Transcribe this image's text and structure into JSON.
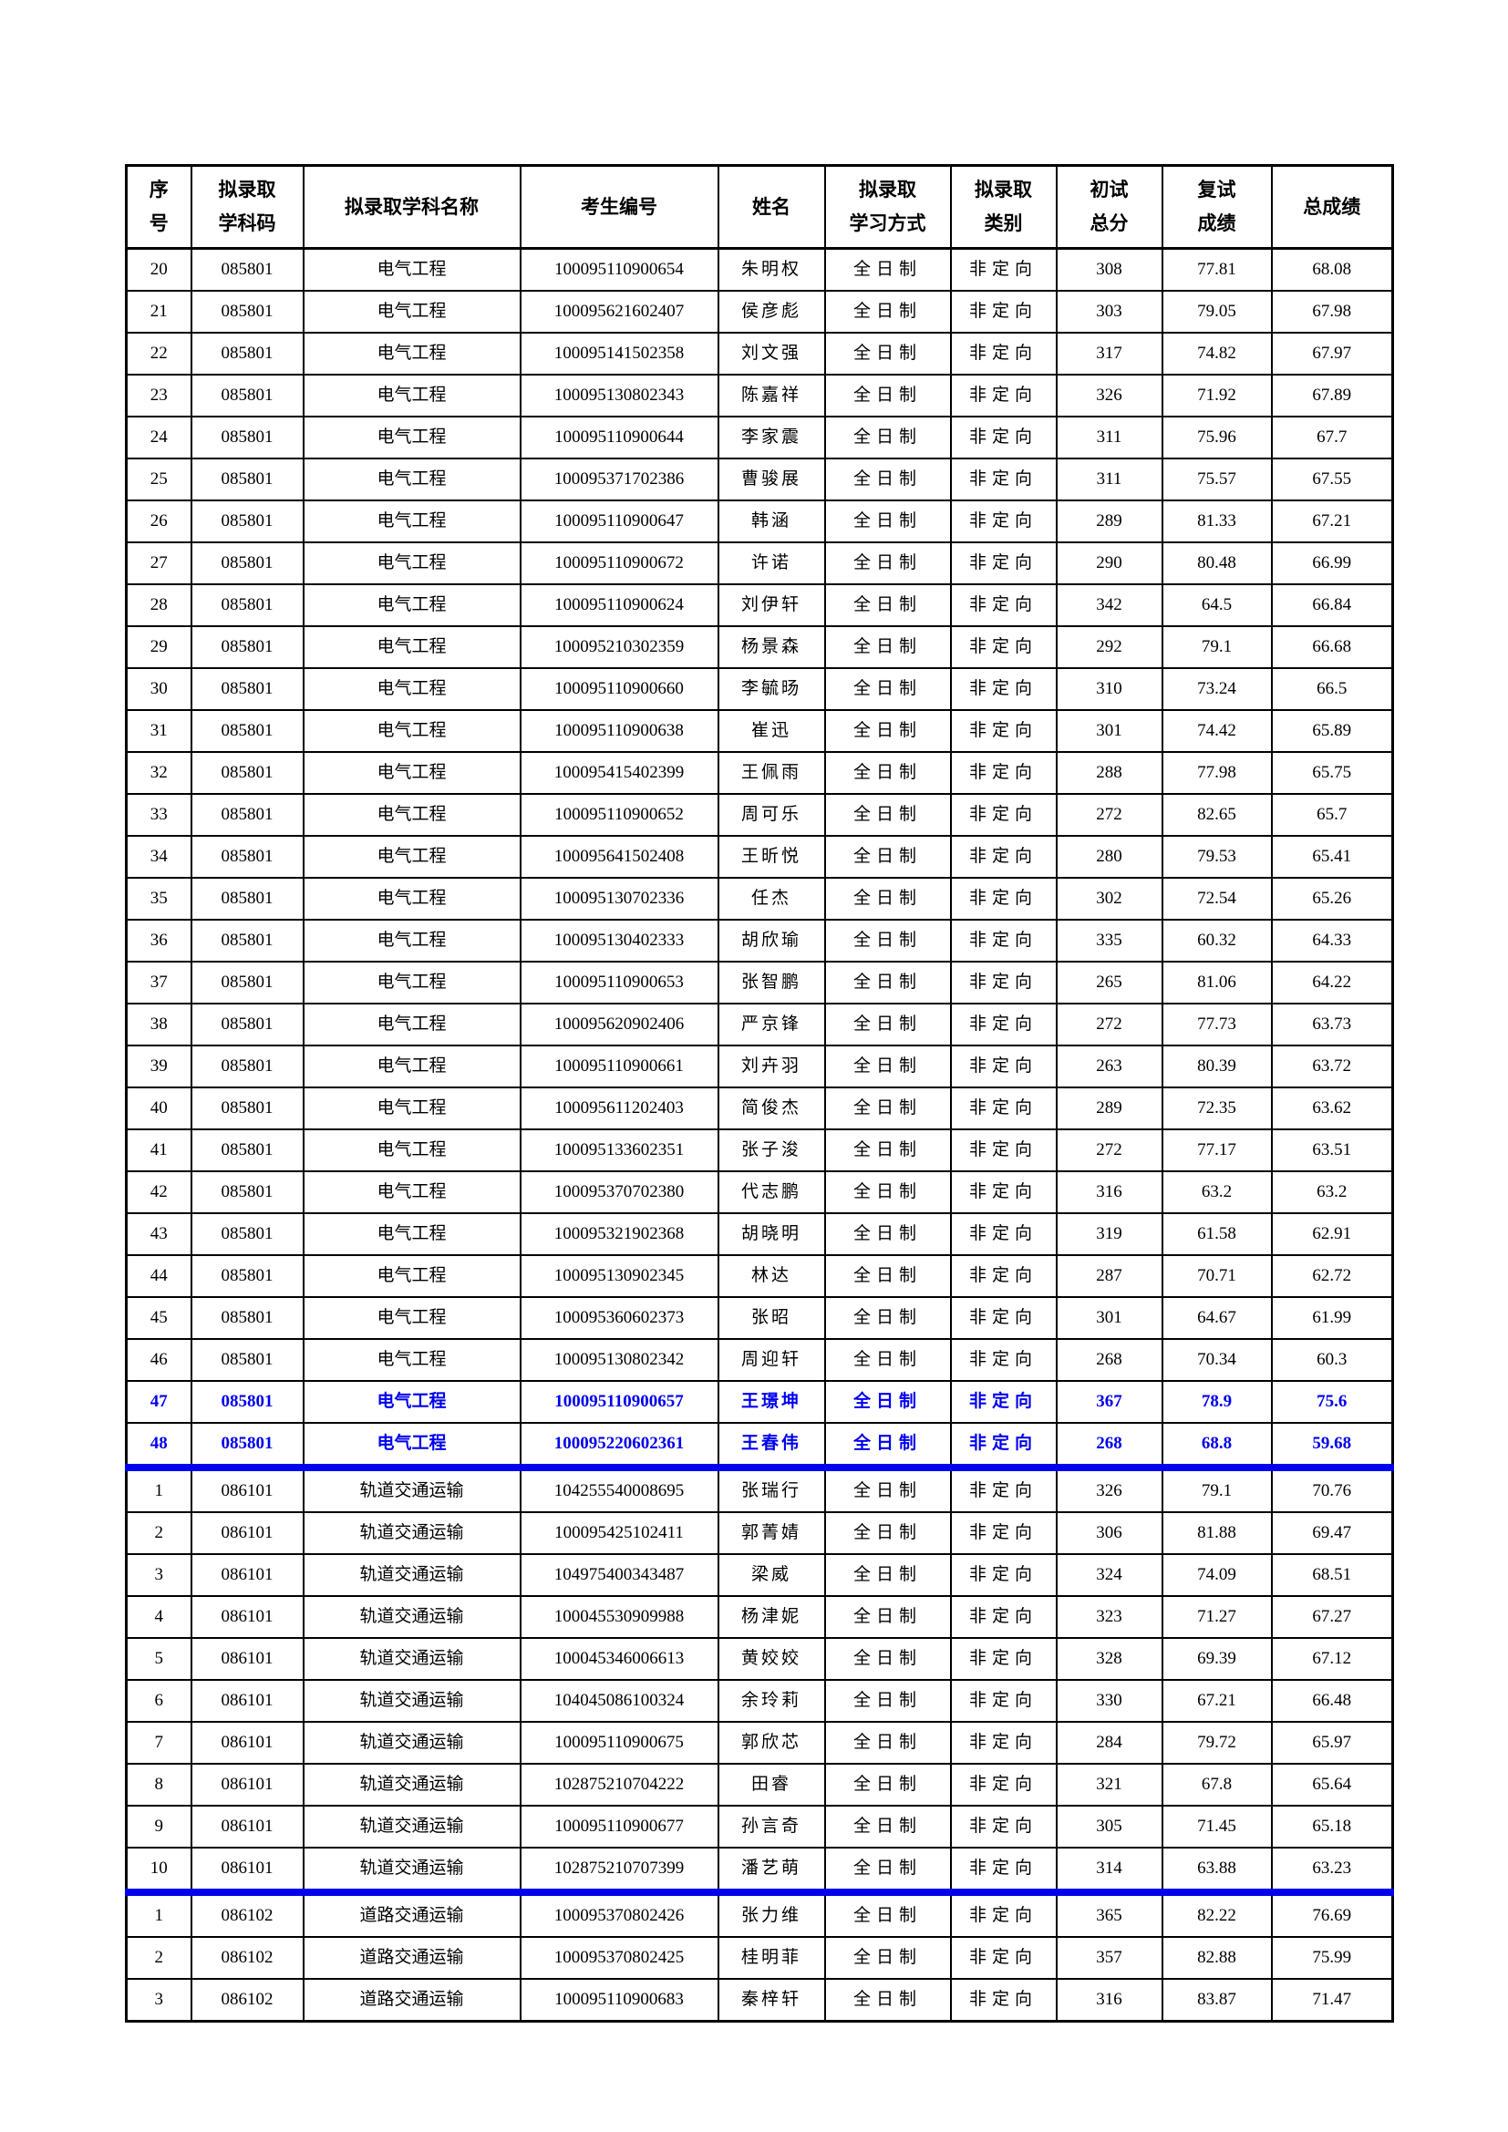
{
  "colors": {
    "text": "#000000",
    "border": "#000000",
    "highlight_text": "#0000EE",
    "section_divider": "#0000EE",
    "page_background": "#ffffff"
  },
  "table": {
    "header": [
      "序\n号",
      "拟录取\n学科码",
      "拟录取学科名称",
      "考生编号",
      "姓名",
      "拟录取\n学习方式",
      "拟录取\n类别",
      "初试\n总分",
      "复试\n成绩",
      "总成绩"
    ],
    "rows": [
      {
        "seq": "20",
        "code": "085801",
        "subject": "电气工程",
        "candidate_no": "100095110900654",
        "name": "朱明权",
        "study_mode": "全日制",
        "category": "非定向",
        "initial_score": "308",
        "retest_score": "77.81",
        "total_score": "68.08",
        "highlight": false,
        "divider_before": false
      },
      {
        "seq": "21",
        "code": "085801",
        "subject": "电气工程",
        "candidate_no": "100095621602407",
        "name": "侯彦彪",
        "study_mode": "全日制",
        "category": "非定向",
        "initial_score": "303",
        "retest_score": "79.05",
        "total_score": "67.98",
        "highlight": false,
        "divider_before": false
      },
      {
        "seq": "22",
        "code": "085801",
        "subject": "电气工程",
        "candidate_no": "100095141502358",
        "name": "刘文强",
        "study_mode": "全日制",
        "category": "非定向",
        "initial_score": "317",
        "retest_score": "74.82",
        "total_score": "67.97",
        "highlight": false,
        "divider_before": false
      },
      {
        "seq": "23",
        "code": "085801",
        "subject": "电气工程",
        "candidate_no": "100095130802343",
        "name": "陈嘉祥",
        "study_mode": "全日制",
        "category": "非定向",
        "initial_score": "326",
        "retest_score": "71.92",
        "total_score": "67.89",
        "highlight": false,
        "divider_before": false
      },
      {
        "seq": "24",
        "code": "085801",
        "subject": "电气工程",
        "candidate_no": "100095110900644",
        "name": "李家震",
        "study_mode": "全日制",
        "category": "非定向",
        "initial_score": "311",
        "retest_score": "75.96",
        "total_score": "67.7",
        "highlight": false,
        "divider_before": false
      },
      {
        "seq": "25",
        "code": "085801",
        "subject": "电气工程",
        "candidate_no": "100095371702386",
        "name": "曹骏展",
        "study_mode": "全日制",
        "category": "非定向",
        "initial_score": "311",
        "retest_score": "75.57",
        "total_score": "67.55",
        "highlight": false,
        "divider_before": false
      },
      {
        "seq": "26",
        "code": "085801",
        "subject": "电气工程",
        "candidate_no": "100095110900647",
        "name": "韩涵",
        "study_mode": "全日制",
        "category": "非定向",
        "initial_score": "289",
        "retest_score": "81.33",
        "total_score": "67.21",
        "highlight": false,
        "divider_before": false
      },
      {
        "seq": "27",
        "code": "085801",
        "subject": "电气工程",
        "candidate_no": "100095110900672",
        "name": "许诺",
        "study_mode": "全日制",
        "category": "非定向",
        "initial_score": "290",
        "retest_score": "80.48",
        "total_score": "66.99",
        "highlight": false,
        "divider_before": false
      },
      {
        "seq": "28",
        "code": "085801",
        "subject": "电气工程",
        "candidate_no": "100095110900624",
        "name": "刘伊轩",
        "study_mode": "全日制",
        "category": "非定向",
        "initial_score": "342",
        "retest_score": "64.5",
        "total_score": "66.84",
        "highlight": false,
        "divider_before": false
      },
      {
        "seq": "29",
        "code": "085801",
        "subject": "电气工程",
        "candidate_no": "100095210302359",
        "name": "杨景森",
        "study_mode": "全日制",
        "category": "非定向",
        "initial_score": "292",
        "retest_score": "79.1",
        "total_score": "66.68",
        "highlight": false,
        "divider_before": false
      },
      {
        "seq": "30",
        "code": "085801",
        "subject": "电气工程",
        "candidate_no": "100095110900660",
        "name": "李毓旸",
        "study_mode": "全日制",
        "category": "非定向",
        "initial_score": "310",
        "retest_score": "73.24",
        "total_score": "66.5",
        "highlight": false,
        "divider_before": false
      },
      {
        "seq": "31",
        "code": "085801",
        "subject": "电气工程",
        "candidate_no": "100095110900638",
        "name": "崔迅",
        "study_mode": "全日制",
        "category": "非定向",
        "initial_score": "301",
        "retest_score": "74.42",
        "total_score": "65.89",
        "highlight": false,
        "divider_before": false
      },
      {
        "seq": "32",
        "code": "085801",
        "subject": "电气工程",
        "candidate_no": "100095415402399",
        "name": "王佩雨",
        "study_mode": "全日制",
        "category": "非定向",
        "initial_score": "288",
        "retest_score": "77.98",
        "total_score": "65.75",
        "highlight": false,
        "divider_before": false
      },
      {
        "seq": "33",
        "code": "085801",
        "subject": "电气工程",
        "candidate_no": "100095110900652",
        "name": "周可乐",
        "study_mode": "全日制",
        "category": "非定向",
        "initial_score": "272",
        "retest_score": "82.65",
        "total_score": "65.7",
        "highlight": false,
        "divider_before": false
      },
      {
        "seq": "34",
        "code": "085801",
        "subject": "电气工程",
        "candidate_no": "100095641502408",
        "name": "王昕悦",
        "study_mode": "全日制",
        "category": "非定向",
        "initial_score": "280",
        "retest_score": "79.53",
        "total_score": "65.41",
        "highlight": false,
        "divider_before": false
      },
      {
        "seq": "35",
        "code": "085801",
        "subject": "电气工程",
        "candidate_no": "100095130702336",
        "name": "任杰",
        "study_mode": "全日制",
        "category": "非定向",
        "initial_score": "302",
        "retest_score": "72.54",
        "total_score": "65.26",
        "highlight": false,
        "divider_before": false
      },
      {
        "seq": "36",
        "code": "085801",
        "subject": "电气工程",
        "candidate_no": "100095130402333",
        "name": "胡欣瑜",
        "study_mode": "全日制",
        "category": "非定向",
        "initial_score": "335",
        "retest_score": "60.32",
        "total_score": "64.33",
        "highlight": false,
        "divider_before": false
      },
      {
        "seq": "37",
        "code": "085801",
        "subject": "电气工程",
        "candidate_no": "100095110900653",
        "name": "张智鹏",
        "study_mode": "全日制",
        "category": "非定向",
        "initial_score": "265",
        "retest_score": "81.06",
        "total_score": "64.22",
        "highlight": false,
        "divider_before": false
      },
      {
        "seq": "38",
        "code": "085801",
        "subject": "电气工程",
        "candidate_no": "100095620902406",
        "name": "严京锋",
        "study_mode": "全日制",
        "category": "非定向",
        "initial_score": "272",
        "retest_score": "77.73",
        "total_score": "63.73",
        "highlight": false,
        "divider_before": false
      },
      {
        "seq": "39",
        "code": "085801",
        "subject": "电气工程",
        "candidate_no": "100095110900661",
        "name": "刘卉羽",
        "study_mode": "全日制",
        "category": "非定向",
        "initial_score": "263",
        "retest_score": "80.39",
        "total_score": "63.72",
        "highlight": false,
        "divider_before": false
      },
      {
        "seq": "40",
        "code": "085801",
        "subject": "电气工程",
        "candidate_no": "100095611202403",
        "name": "简俊杰",
        "study_mode": "全日制",
        "category": "非定向",
        "initial_score": "289",
        "retest_score": "72.35",
        "total_score": "63.62",
        "highlight": false,
        "divider_before": false
      },
      {
        "seq": "41",
        "code": "085801",
        "subject": "电气工程",
        "candidate_no": "100095133602351",
        "name": "张子浚",
        "study_mode": "全日制",
        "category": "非定向",
        "initial_score": "272",
        "retest_score": "77.17",
        "total_score": "63.51",
        "highlight": false,
        "divider_before": false
      },
      {
        "seq": "42",
        "code": "085801",
        "subject": "电气工程",
        "candidate_no": "100095370702380",
        "name": "代志鹏",
        "study_mode": "全日制",
        "category": "非定向",
        "initial_score": "316",
        "retest_score": "63.2",
        "total_score": "63.2",
        "highlight": false,
        "divider_before": false
      },
      {
        "seq": "43",
        "code": "085801",
        "subject": "电气工程",
        "candidate_no": "100095321902368",
        "name": "胡晓明",
        "study_mode": "全日制",
        "category": "非定向",
        "initial_score": "319",
        "retest_score": "61.58",
        "total_score": "62.91",
        "highlight": false,
        "divider_before": false
      },
      {
        "seq": "44",
        "code": "085801",
        "subject": "电气工程",
        "candidate_no": "100095130902345",
        "name": "林达",
        "study_mode": "全日制",
        "category": "非定向",
        "initial_score": "287",
        "retest_score": "70.71",
        "total_score": "62.72",
        "highlight": false,
        "divider_before": false
      },
      {
        "seq": "45",
        "code": "085801",
        "subject": "电气工程",
        "candidate_no": "100095360602373",
        "name": "张昭",
        "study_mode": "全日制",
        "category": "非定向",
        "initial_score": "301",
        "retest_score": "64.67",
        "total_score": "61.99",
        "highlight": false,
        "divider_before": false
      },
      {
        "seq": "46",
        "code": "085801",
        "subject": "电气工程",
        "candidate_no": "100095130802342",
        "name": "周迎轩",
        "study_mode": "全日制",
        "category": "非定向",
        "initial_score": "268",
        "retest_score": "70.34",
        "total_score": "60.3",
        "highlight": false,
        "divider_before": false
      },
      {
        "seq": "47",
        "code": "085801",
        "subject": "电气工程",
        "candidate_no": "100095110900657",
        "name": "王璟坤",
        "study_mode": "全日制",
        "category": "非定向",
        "initial_score": "367",
        "retest_score": "78.9",
        "total_score": "75.6",
        "highlight": true,
        "divider_before": false
      },
      {
        "seq": "48",
        "code": "085801",
        "subject": "电气工程",
        "candidate_no": "100095220602361",
        "name": "王春伟",
        "study_mode": "全日制",
        "category": "非定向",
        "initial_score": "268",
        "retest_score": "68.8",
        "total_score": "59.68",
        "highlight": true,
        "divider_before": false
      },
      {
        "seq": "1",
        "code": "086101",
        "subject": "轨道交通运输",
        "candidate_no": "104255540008695",
        "name": "张瑞行",
        "study_mode": "全日制",
        "category": "非定向",
        "initial_score": "326",
        "retest_score": "79.1",
        "total_score": "70.76",
        "highlight": false,
        "divider_before": true
      },
      {
        "seq": "2",
        "code": "086101",
        "subject": "轨道交通运输",
        "candidate_no": "100095425102411",
        "name": "郭菁婧",
        "study_mode": "全日制",
        "category": "非定向",
        "initial_score": "306",
        "retest_score": "81.88",
        "total_score": "69.47",
        "highlight": false,
        "divider_before": false
      },
      {
        "seq": "3",
        "code": "086101",
        "subject": "轨道交通运输",
        "candidate_no": "104975400343487",
        "name": "梁威",
        "study_mode": "全日制",
        "category": "非定向",
        "initial_score": "324",
        "retest_score": "74.09",
        "total_score": "68.51",
        "highlight": false,
        "divider_before": false
      },
      {
        "seq": "4",
        "code": "086101",
        "subject": "轨道交通运输",
        "candidate_no": "100045530909988",
        "name": "杨津妮",
        "study_mode": "全日制",
        "category": "非定向",
        "initial_score": "323",
        "retest_score": "71.27",
        "total_score": "67.27",
        "highlight": false,
        "divider_before": false
      },
      {
        "seq": "5",
        "code": "086101",
        "subject": "轨道交通运输",
        "candidate_no": "100045346006613",
        "name": "黄姣姣",
        "study_mode": "全日制",
        "category": "非定向",
        "initial_score": "328",
        "retest_score": "69.39",
        "total_score": "67.12",
        "highlight": false,
        "divider_before": false
      },
      {
        "seq": "6",
        "code": "086101",
        "subject": "轨道交通运输",
        "candidate_no": "104045086100324",
        "name": "余玲莉",
        "study_mode": "全日制",
        "category": "非定向",
        "initial_score": "330",
        "retest_score": "67.21",
        "total_score": "66.48",
        "highlight": false,
        "divider_before": false
      },
      {
        "seq": "7",
        "code": "086101",
        "subject": "轨道交通运输",
        "candidate_no": "100095110900675",
        "name": "郭欣芯",
        "study_mode": "全日制",
        "category": "非定向",
        "initial_score": "284",
        "retest_score": "79.72",
        "total_score": "65.97",
        "highlight": false,
        "divider_before": false
      },
      {
        "seq": "8",
        "code": "086101",
        "subject": "轨道交通运输",
        "candidate_no": "102875210704222",
        "name": "田睿",
        "study_mode": "全日制",
        "category": "非定向",
        "initial_score": "321",
        "retest_score": "67.8",
        "total_score": "65.64",
        "highlight": false,
        "divider_before": false
      },
      {
        "seq": "9",
        "code": "086101",
        "subject": "轨道交通运输",
        "candidate_no": "100095110900677",
        "name": "孙言奇",
        "study_mode": "全日制",
        "category": "非定向",
        "initial_score": "305",
        "retest_score": "71.45",
        "total_score": "65.18",
        "highlight": false,
        "divider_before": false
      },
      {
        "seq": "10",
        "code": "086101",
        "subject": "轨道交通运输",
        "candidate_no": "102875210707399",
        "name": "潘艺萌",
        "study_mode": "全日制",
        "category": "非定向",
        "initial_score": "314",
        "retest_score": "63.88",
        "total_score": "63.23",
        "highlight": false,
        "divider_before": false
      },
      {
        "seq": "1",
        "code": "086102",
        "subject": "道路交通运输",
        "candidate_no": "100095370802426",
        "name": "张力维",
        "study_mode": "全日制",
        "category": "非定向",
        "initial_score": "365",
        "retest_score": "82.22",
        "total_score": "76.69",
        "highlight": false,
        "divider_before": true
      },
      {
        "seq": "2",
        "code": "086102",
        "subject": "道路交通运输",
        "candidate_no": "100095370802425",
        "name": "桂明菲",
        "study_mode": "全日制",
        "category": "非定向",
        "initial_score": "357",
        "retest_score": "82.88",
        "total_score": "75.99",
        "highlight": false,
        "divider_before": false
      },
      {
        "seq": "3",
        "code": "086102",
        "subject": "道路交通运输",
        "candidate_no": "100095110900683",
        "name": "秦梓轩",
        "study_mode": "全日制",
        "category": "非定向",
        "initial_score": "316",
        "retest_score": "83.87",
        "total_score": "71.47",
        "highlight": false,
        "divider_before": false
      }
    ]
  }
}
